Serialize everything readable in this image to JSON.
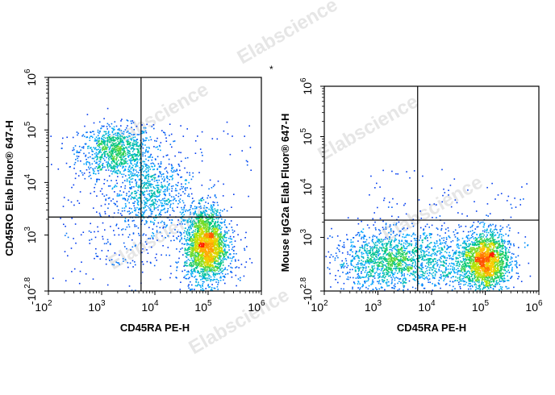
{
  "watermark": "Elabscience",
  "asterisk": "*",
  "chart_data": [
    {
      "type": "scatter",
      "subtype": "flow-cytometry-density-dot-plot",
      "xlabel": "CD45RA PE-H",
      "ylabel": "CD45RO Elab Fluor® 647-H",
      "x_scale": "log",
      "y_scale": "biexponential",
      "xlim": [
        100,
        1000000
      ],
      "ylim": [
        -631,
        1000000
      ],
      "x_ticks": [
        {
          "base": "10",
          "exp": "2",
          "value": 100
        },
        {
          "base": "10",
          "exp": "3",
          "value": 1000
        },
        {
          "base": "10",
          "exp": "4",
          "value": 10000
        },
        {
          "base": "10",
          "exp": "5",
          "value": 100000
        },
        {
          "base": "10",
          "exp": "6",
          "value": 1000000
        }
      ],
      "y_ticks": [
        {
          "base": "-10",
          "exp": "2.8",
          "value": -631
        },
        {
          "base": "10",
          "exp": "3",
          "value": 1000
        },
        {
          "base": "10",
          "exp": "4",
          "value": 10000
        },
        {
          "base": "10",
          "exp": "5",
          "value": 100000
        },
        {
          "base": "10",
          "exp": "6",
          "value": 1000000
        }
      ],
      "quadrant_gate": {
        "x": 5500,
        "y": 2200
      },
      "clusters": [
        {
          "x": 1800,
          "y": 40000,
          "spread_x_decades": 0.35,
          "spread_y_decades": 0.25,
          "weight": 0.22
        },
        {
          "x": 8000,
          "y": 6000,
          "spread_x_decades": 0.35,
          "spread_y_decades": 0.35,
          "weight": 0.16
        },
        {
          "x": 90000,
          "y": 700,
          "spread_x_decades": 0.2,
          "spread_y_decades": 0.35,
          "weight": 0.5
        },
        {
          "x": 3000,
          "y": 1500,
          "spread_x_decades": 0.9,
          "spread_y_decades": 0.9,
          "weight": 0.06
        }
      ],
      "grid": false,
      "legend": "none"
    },
    {
      "type": "scatter",
      "subtype": "flow-cytometry-density-dot-plot",
      "xlabel": "CD45RA PE-H",
      "ylabel": "Mouse IgG2a Elab Fluor® 647-H",
      "x_scale": "log",
      "y_scale": "biexponential",
      "xlim": [
        100,
        1000000
      ],
      "ylim": [
        -631,
        1000000
      ],
      "x_ticks": [
        {
          "base": "10",
          "exp": "2",
          "value": 100
        },
        {
          "base": "10",
          "exp": "3",
          "value": 1000
        },
        {
          "base": "10",
          "exp": "4",
          "value": 10000
        },
        {
          "base": "10",
          "exp": "5",
          "value": 100000
        },
        {
          "base": "10",
          "exp": "6",
          "value": 1000000
        }
      ],
      "y_ticks": [
        {
          "base": "-10",
          "exp": "2.8",
          "value": -631
        },
        {
          "base": "10",
          "exp": "3",
          "value": 1000
        },
        {
          "base": "10",
          "exp": "4",
          "value": 10000
        },
        {
          "base": "10",
          "exp": "5",
          "value": 100000
        },
        {
          "base": "10",
          "exp": "6",
          "value": 1000000
        }
      ],
      "quadrant_gate": {
        "x": 5500,
        "y": 2200
      },
      "clusters": [
        {
          "x": 1500,
          "y": 300,
          "spread_x_decades": 0.5,
          "spread_y_decades": 0.3,
          "weight": 0.35
        },
        {
          "x": 100000,
          "y": 300,
          "spread_x_decades": 0.22,
          "spread_y_decades": 0.3,
          "weight": 0.5
        },
        {
          "x": 15000,
          "y": 300,
          "spread_x_decades": 0.5,
          "spread_y_decades": 0.3,
          "weight": 0.15
        }
      ],
      "grid": false,
      "legend": "none"
    }
  ]
}
